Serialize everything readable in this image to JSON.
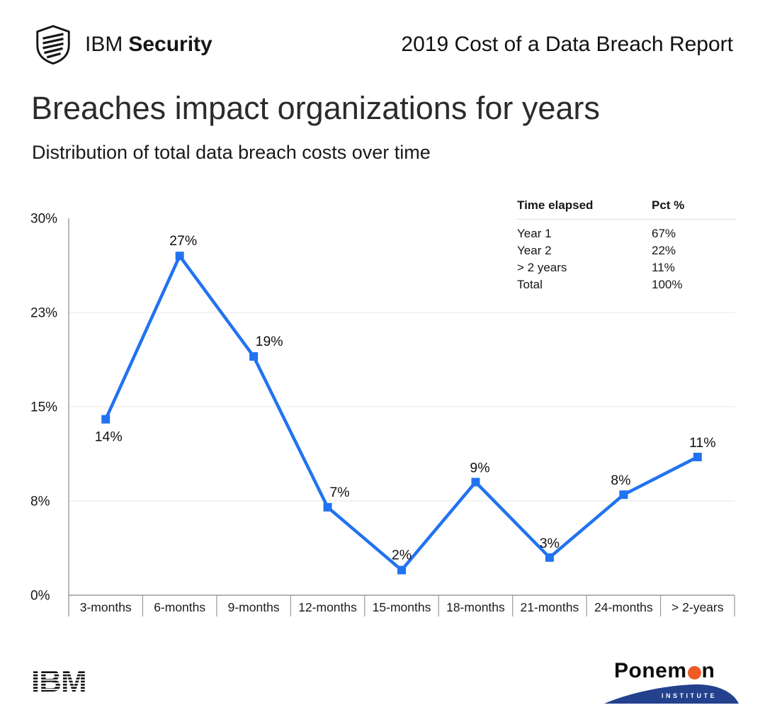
{
  "header": {
    "brand": {
      "prefix": "IBM",
      "suffix": "Security"
    },
    "report_title": "2019 Cost of a Data Breach Report"
  },
  "titles": {
    "title": "Breaches impact organizations for years",
    "subtitle": "Distribution of total data breach costs over time"
  },
  "inset_table": {
    "headers": [
      "Time elapsed",
      "Pct %"
    ],
    "rows": [
      [
        "Year 1",
        "67%"
      ],
      [
        "Year 2",
        "22%"
      ],
      [
        "> 2 years",
        "11%"
      ],
      [
        "Total",
        "100%"
      ]
    ]
  },
  "chart_data": {
    "type": "line",
    "categories": [
      "3-months",
      "6-months",
      "9-months",
      "12-months",
      "15-months",
      "18-months",
      "21-months",
      "24-months",
      "> 2-years"
    ],
    "values": [
      14,
      27,
      19,
      7,
      2,
      9,
      3,
      8,
      11
    ],
    "data_labels": [
      "14%",
      "27%",
      "19%",
      "7%",
      "2%",
      "9%",
      "3%",
      "8%",
      "11%"
    ],
    "title": "Distribution of total data breach costs over time",
    "xlabel": "",
    "ylabel": "",
    "ylim": [
      0,
      30
    ],
    "ytick_values": [
      0,
      7.5,
      15,
      22.5,
      30
    ],
    "ytick_labels": [
      "0%",
      "8%",
      "15%",
      "23%",
      "30%"
    ],
    "gridline_values": [
      7.5,
      15,
      22.5
    ],
    "grid": "horizontal",
    "legend": "none",
    "marker": "square",
    "line_color": "#2173f0",
    "gridline_color": "#ececec",
    "axis_color": "#9a9a9a",
    "label_color": "#111111"
  },
  "footer": {
    "ibm_logo_text": "IBM",
    "ponemon": {
      "name_start": "Ponem",
      "name_end": "n",
      "institute": "INSTITUTE",
      "sun_color": "#ee5b25",
      "hill_color": "#24418e"
    }
  }
}
